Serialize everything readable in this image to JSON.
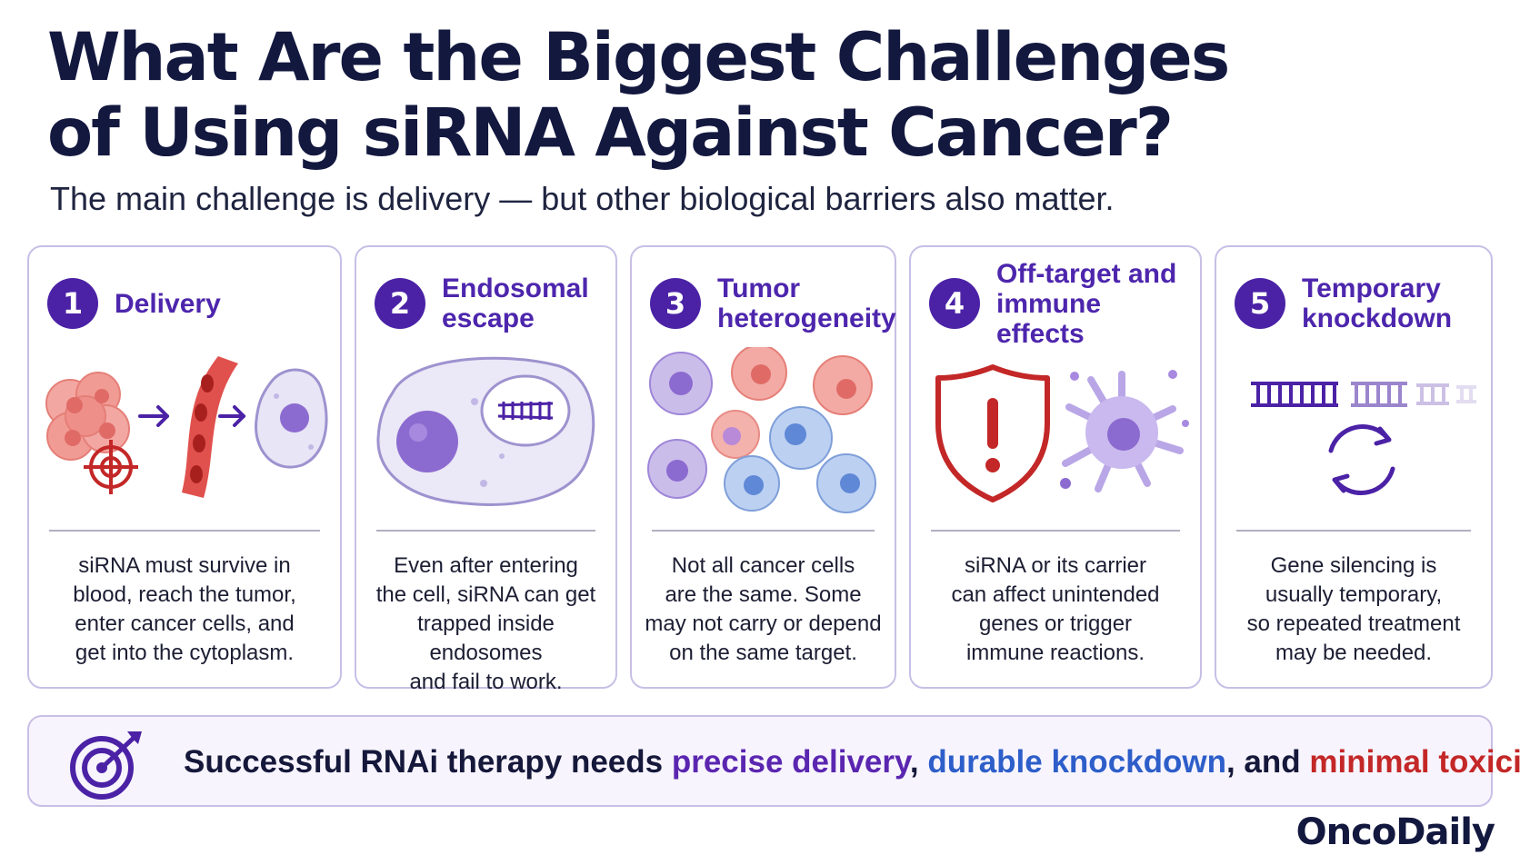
{
  "header": {
    "title_line1": "What Are the Biggest Challenges",
    "title_line2": "of Using siRNA Against Cancer?",
    "subtitle": "The main challenge is delivery — but other biological barriers also matter."
  },
  "cards": [
    {
      "number": "1",
      "title": "Delivery",
      "body": "siRNA must survive in\nblood, reach the tumor,\nenter cancer cells, and\nget into the cytoplasm."
    },
    {
      "number": "2",
      "title": "Endosomal\nescape",
      "body": "Even after entering\nthe cell, siRNA can get\ntrapped inside endosomes\nand fail to work."
    },
    {
      "number": "3",
      "title": "Tumor\nheterogeneity",
      "body": "Not all cancer cells\nare the same. Some\nmay not carry or depend\non the same target."
    },
    {
      "number": "4",
      "title": "Off-target and\nimmune effects",
      "body": "siRNA or its carrier\ncan affect unintended\ngenes or trigger\nimmune reactions."
    },
    {
      "number": "5",
      "title": "Temporary\nknockdown",
      "body": "Gene silencing is\nusually temporary,\nso repeated treatment\nmay be needed."
    }
  ],
  "banner": {
    "prefix": "Successful RNAi therapy needs ",
    "highlight1": "precise delivery",
    "sep1": ", ",
    "highlight2": "durable knockdown",
    "sep2": ", and ",
    "highlight3": "minimal toxicity",
    "suffix": "."
  },
  "brand": "OncoDaily",
  "colors": {
    "accent_purple": "#4b22a6",
    "heading_purple": "#4d26ad",
    "highlight_blue": "#2d5ec9",
    "highlight_red": "#c32727",
    "card_border": "#c8bfe6"
  }
}
